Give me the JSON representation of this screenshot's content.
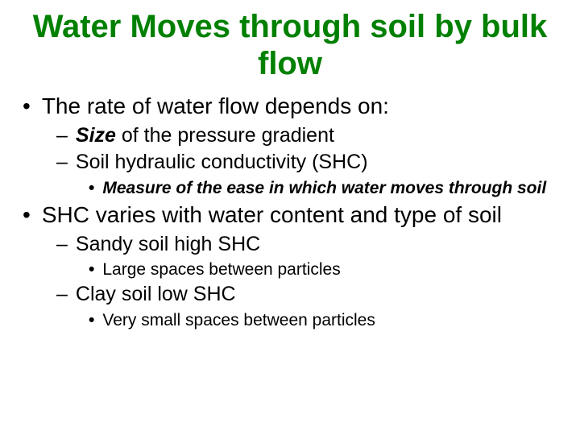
{
  "title": {
    "text": "Water Moves through soil by bulk flow",
    "color": "#008000",
    "fontsize": 40
  },
  "body": {
    "color": "#000000",
    "l1_fontsize": 28,
    "l2_fontsize": 25,
    "l3_fontsize": 21
  },
  "items": {
    "a1": "The rate of water flow depends on:",
    "a2_pre": "Size",
    "a2_post": " of the pressure gradient",
    "a3": "Soil hydraulic conductivity (SHC)",
    "a4": "Measure of the ease in which water moves through soil",
    "b1": "SHC varies with water content and type of soil",
    "b2": "Sandy soil high SHC",
    "b3": "Large spaces between particles",
    "b4": "Clay soil low SHC",
    "b5": "Very small spaces between particles"
  }
}
